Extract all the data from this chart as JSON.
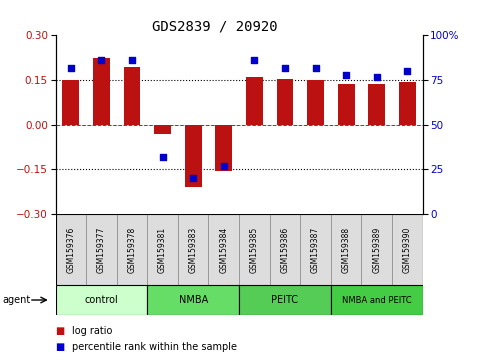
{
  "title": "GDS2839 / 20920",
  "samples": [
    "GSM159376",
    "GSM159377",
    "GSM159378",
    "GSM159381",
    "GSM159383",
    "GSM159384",
    "GSM159385",
    "GSM159386",
    "GSM159387",
    "GSM159388",
    "GSM159389",
    "GSM159390"
  ],
  "log_ratio": [
    0.15,
    0.225,
    0.195,
    -0.03,
    -0.21,
    -0.155,
    0.162,
    0.155,
    0.15,
    0.137,
    0.137,
    0.143
  ],
  "percentile_rank": [
    82,
    86,
    86,
    32,
    20,
    27,
    86,
    82,
    82,
    78,
    77,
    80
  ],
  "bar_color": "#bb1111",
  "dot_color": "#0000cc",
  "ylim": [
    -0.3,
    0.3
  ],
  "yticks_left": [
    -0.3,
    -0.15,
    0.0,
    0.15,
    0.3
  ],
  "yticks_right": [
    0,
    25,
    50,
    75,
    100
  ],
  "hlines_dotted": [
    -0.15,
    0.15
  ],
  "hline_dashed": 0.0,
  "groups": [
    {
      "label": "control",
      "start": 0,
      "end": 3,
      "color": "#ccffcc"
    },
    {
      "label": "NMBA",
      "start": 3,
      "end": 6,
      "color": "#66dd66"
    },
    {
      "label": "PEITC",
      "start": 6,
      "end": 9,
      "color": "#55cc55"
    },
    {
      "label": "NMBA and PEITC",
      "start": 9,
      "end": 12,
      "color": "#44cc44"
    }
  ],
  "agent_label": "agent",
  "legend_items": [
    {
      "label": "log ratio",
      "color": "#bb1111"
    },
    {
      "label": "percentile rank within the sample",
      "color": "#0000cc"
    }
  ],
  "bar_width": 0.55
}
